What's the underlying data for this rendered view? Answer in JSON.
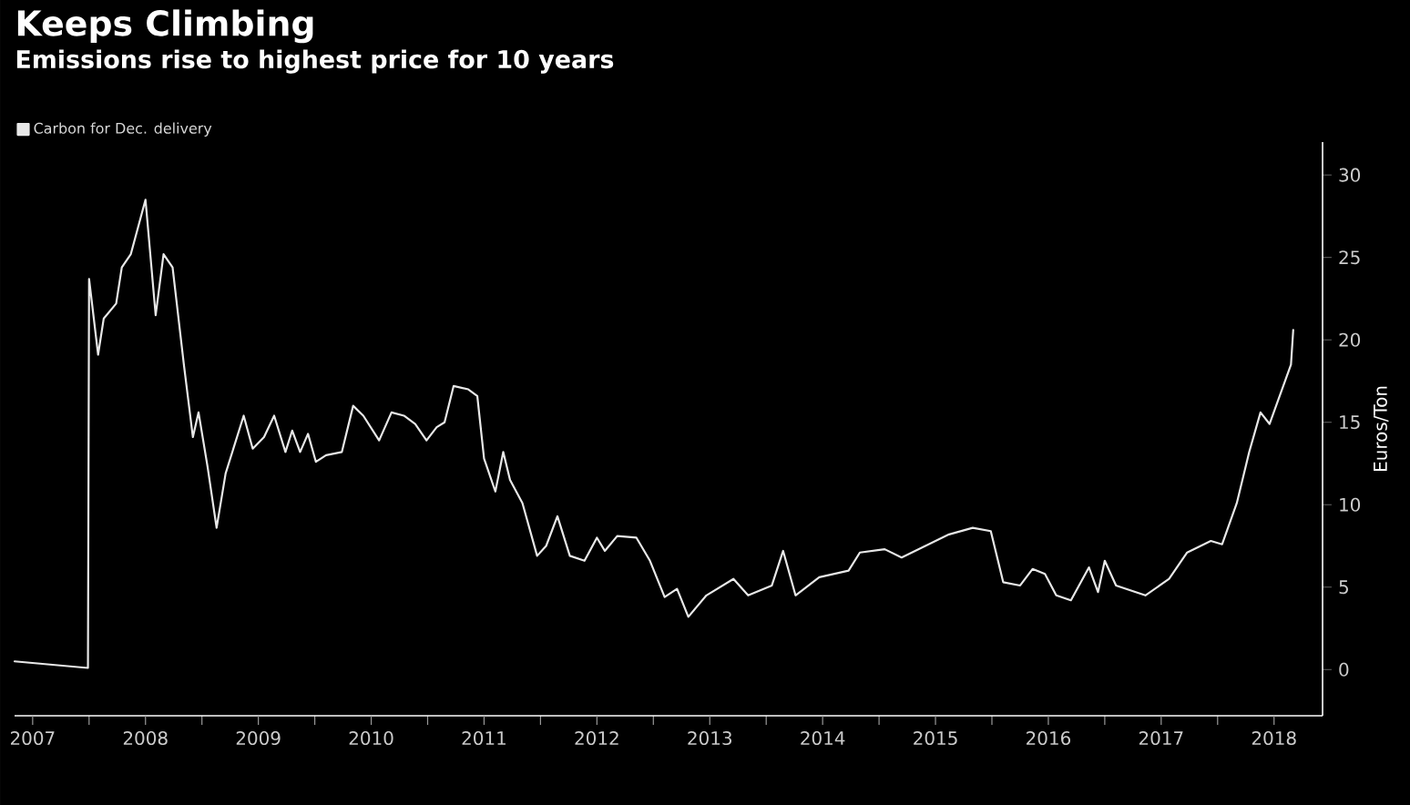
{
  "chart_data": {
    "type": "line",
    "title": "Keeps Climbing",
    "subtitle": "Emissions rise to highest price for 10 years",
    "ylabel": "Euros/Ton",
    "series": [
      {
        "name": "Carbon for Dec. delivery",
        "color": "#e8e8e8",
        "x": [
          2007.34,
          2007.99,
          2008.0,
          2008.08,
          2008.13,
          2008.24,
          2008.29,
          2008.37,
          2008.5,
          2008.59,
          2008.66,
          2008.74,
          2008.84,
          2008.92,
          2008.97,
          2009.05,
          2009.13,
          2009.21,
          2009.37,
          2009.45,
          2009.55,
          2009.64,
          2009.74,
          2009.8,
          2009.87,
          2009.94,
          2010.01,
          2010.1,
          2010.24,
          2010.34,
          2010.43,
          2010.57,
          2010.68,
          2010.79,
          2010.89,
          2010.99,
          2011.08,
          2011.15,
          2011.23,
          2011.36,
          2011.44,
          2011.5,
          2011.6,
          2011.67,
          2011.73,
          2011.84,
          2011.97,
          2012.05,
          2012.15,
          2012.26,
          2012.39,
          2012.5,
          2012.57,
          2012.68,
          2012.85,
          2012.97,
          2013.1,
          2013.21,
          2013.31,
          2013.47,
          2013.71,
          2013.84,
          2014.05,
          2014.15,
          2014.26,
          2014.47,
          2014.73,
          2014.83,
          2015.05,
          2015.2,
          2015.41,
          2015.62,
          2015.83,
          2015.99,
          2016.1,
          2016.25,
          2016.36,
          2016.47,
          2016.57,
          2016.7,
          2016.86,
          2016.94,
          2017.0,
          2017.1,
          2017.36,
          2017.57,
          2017.73,
          2017.94,
          2018.04,
          2018.17,
          2018.28,
          2018.38,
          2018.46,
          2018.65,
          2018.67
        ],
        "values": [
          0.5,
          0.1,
          23.7,
          19.1,
          21.3,
          22.2,
          24.4,
          25.2,
          28.5,
          21.5,
          25.2,
          24.4,
          18.5,
          14.1,
          15.6,
          12.3,
          8.6,
          11.9,
          15.4,
          13.4,
          14.1,
          15.4,
          13.2,
          14.5,
          13.2,
          14.3,
          12.6,
          13.0,
          13.2,
          16.0,
          15.4,
          13.9,
          15.6,
          15.4,
          14.9,
          13.9,
          14.7,
          15.0,
          17.2,
          17.0,
          16.6,
          12.8,
          10.8,
          13.2,
          11.5,
          10.1,
          6.9,
          7.5,
          9.3,
          6.9,
          6.6,
          8.0,
          7.2,
          8.1,
          8.0,
          6.6,
          4.4,
          4.9,
          3.2,
          4.5,
          5.5,
          4.5,
          5.1,
          7.2,
          4.5,
          5.6,
          6.0,
          7.1,
          7.3,
          6.8,
          7.5,
          8.2,
          8.6,
          8.4,
          5.3,
          5.1,
          6.1,
          5.8,
          4.5,
          4.2,
          6.2,
          4.7,
          6.6,
          5.1,
          4.5,
          5.5,
          7.1,
          7.8,
          7.6,
          10.1,
          13.2,
          15.6,
          14.9,
          18.5,
          20.6
        ]
      }
    ],
    "xlim": [
      2007.34,
      2018.93
    ],
    "ylim": [
      -2.8,
      32
    ],
    "xticks": [
      {
        "value": 2007.5,
        "label": "2007"
      },
      {
        "value": 2008,
        "label": null
      },
      {
        "value": 2008.5,
        "label": "2008"
      },
      {
        "value": 2009,
        "label": null
      },
      {
        "value": 2009.5,
        "label": "2009"
      },
      {
        "value": 2010,
        "label": null
      },
      {
        "value": 2010.5,
        "label": "2010"
      },
      {
        "value": 2011,
        "label": null
      },
      {
        "value": 2011.5,
        "label": "2011"
      },
      {
        "value": 2012,
        "label": null
      },
      {
        "value": 2012.5,
        "label": "2012"
      },
      {
        "value": 2013,
        "label": null
      },
      {
        "value": 2013.5,
        "label": "2013"
      },
      {
        "value": 2014,
        "label": null
      },
      {
        "value": 2014.5,
        "label": "2014"
      },
      {
        "value": 2015,
        "label": null
      },
      {
        "value": 2015.5,
        "label": "2015"
      },
      {
        "value": 2016,
        "label": null
      },
      {
        "value": 2016.5,
        "label": "2016"
      },
      {
        "value": 2017,
        "label": null
      },
      {
        "value": 2017.5,
        "label": "2017"
      },
      {
        "value": 2018,
        "label": null
      },
      {
        "value": 2018.5,
        "label": "2018"
      }
    ],
    "yticks": [
      0,
      5,
      10,
      15,
      20,
      25,
      30
    ],
    "legend": "top left",
    "grid": false,
    "marker": "none",
    "line_style": "solid"
  }
}
